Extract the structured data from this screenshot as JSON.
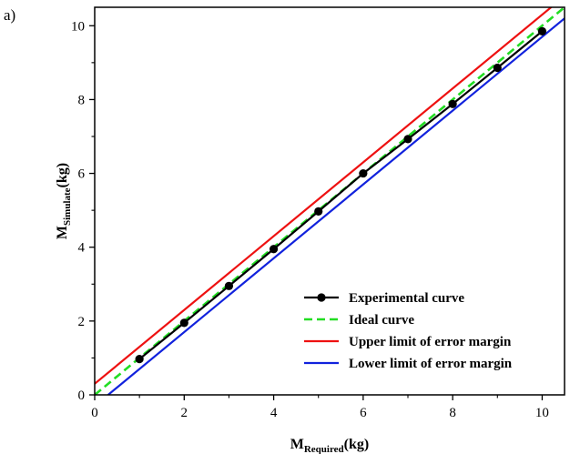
{
  "panel_label": "a)",
  "chart_data": {
    "type": "line",
    "xlabel": {
      "main": "M",
      "sub": "Required",
      "suffix": "(kg)"
    },
    "ylabel": {
      "main": "M",
      "sub": "Simulate",
      "suffix": "(kg)"
    },
    "xlim": [
      0,
      10.5
    ],
    "ylim": [
      0,
      10.5
    ],
    "xticks": [
      0,
      2,
      4,
      6,
      8,
      10
    ],
    "yticks": [
      0,
      2,
      4,
      6,
      8,
      10
    ],
    "grid": false,
    "legend_position": "bottom-right",
    "series": [
      {
        "name": "Experimental curve",
        "color": "#000000",
        "style": "solid-markers",
        "x": [
          1,
          2,
          3,
          4,
          5,
          6,
          7,
          8,
          9,
          10
        ],
        "y": [
          0.97,
          1.95,
          2.95,
          3.95,
          4.97,
          6.0,
          6.93,
          7.88,
          8.86,
          9.85
        ]
      },
      {
        "name": "Ideal curve",
        "color": "#22dd22",
        "style": "dashed",
        "x": [
          0,
          10.5
        ],
        "y": [
          0,
          10.5
        ]
      },
      {
        "name": "Upper limit of error margin",
        "color": "#ee1111",
        "style": "solid",
        "x": [
          0,
          10.5
        ],
        "y": [
          0.3,
          10.8
        ]
      },
      {
        "name": "Lower limit of error margin",
        "color": "#1122dd",
        "style": "solid",
        "x": [
          0.3,
          10.5
        ],
        "y": [
          0,
          10.2
        ]
      }
    ]
  }
}
